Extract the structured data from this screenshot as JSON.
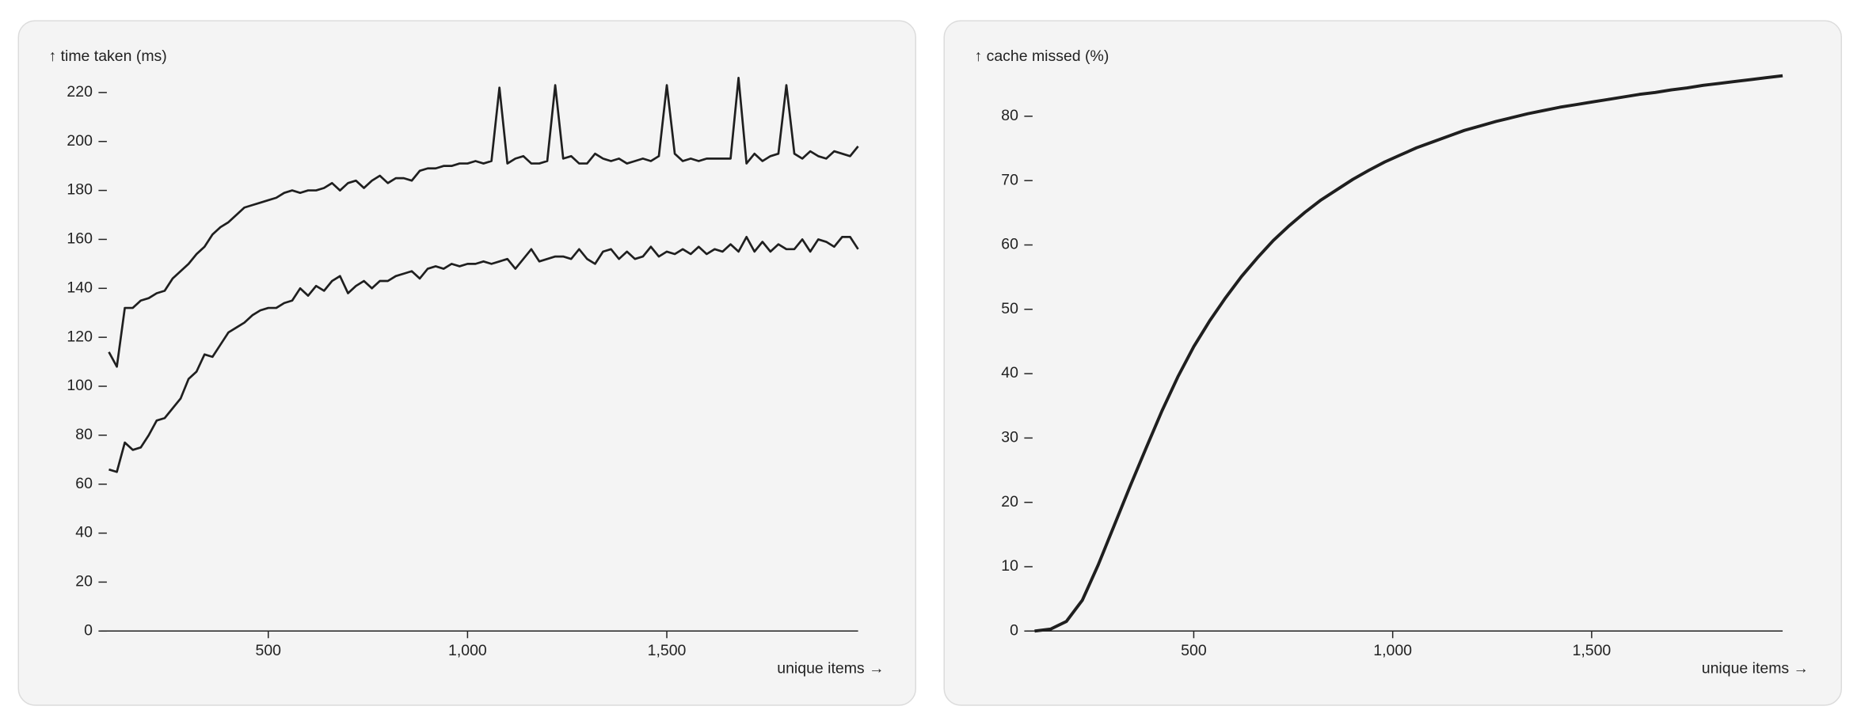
{
  "chart_data": [
    {
      "type": "line",
      "y_label": "↑ time taken (ms)",
      "x_label": "unique items →",
      "xlim": [
        80,
        1980
      ],
      "ylim": [
        0,
        226
      ],
      "xticks": [
        500,
        {
          "value": 1000,
          "label": "1,000"
        },
        {
          "value": 1500,
          "label": "1,500"
        }
      ],
      "yticks": [
        0,
        20,
        40,
        60,
        80,
        100,
        120,
        140,
        160,
        180,
        200,
        220
      ],
      "x": [
        100,
        120,
        140,
        160,
        180,
        200,
        220,
        240,
        260,
        280,
        300,
        320,
        340,
        360,
        380,
        400,
        420,
        440,
        460,
        480,
        500,
        520,
        540,
        560,
        580,
        600,
        620,
        640,
        660,
        680,
        700,
        720,
        740,
        760,
        780,
        800,
        820,
        840,
        860,
        880,
        900,
        920,
        940,
        960,
        980,
        1000,
        1020,
        1040,
        1060,
        1080,
        1100,
        1120,
        1140,
        1160,
        1180,
        1200,
        1220,
        1240,
        1260,
        1280,
        1300,
        1320,
        1340,
        1360,
        1380,
        1400,
        1420,
        1440,
        1460,
        1480,
        1500,
        1520,
        1540,
        1560,
        1580,
        1600,
        1620,
        1640,
        1660,
        1680,
        1700,
        1720,
        1740,
        1760,
        1780,
        1800,
        1820,
        1840,
        1860,
        1880,
        1900,
        1920,
        1940,
        1960,
        1980
      ],
      "series": [
        {
          "color": "#1f1f1f",
          "values": [
            114,
            108,
            132,
            132,
            135,
            136,
            138,
            139,
            144,
            147,
            150,
            154,
            157,
            162,
            165,
            167,
            170,
            173,
            174,
            175,
            176,
            177,
            179,
            180,
            179,
            180,
            180,
            181,
            183,
            180,
            183,
            184,
            181,
            184,
            186,
            183,
            185,
            185,
            184,
            188,
            189,
            189,
            190,
            190,
            191,
            191,
            192,
            191,
            192,
            222,
            191,
            193,
            194,
            191,
            191,
            192,
            223,
            193,
            194,
            191,
            191,
            195,
            193,
            192,
            193,
            191,
            192,
            193,
            192,
            194,
            223,
            195,
            192,
            193,
            192,
            193,
            193,
            193,
            193,
            226,
            191,
            195,
            192,
            194,
            195,
            223,
            195,
            193,
            196,
            194,
            193,
            196,
            195,
            194,
            198
          ]
        },
        {
          "color": "#1f1f1f",
          "values": [
            66,
            65,
            77,
            74,
            75,
            80,
            86,
            87,
            91,
            95,
            103,
            106,
            113,
            112,
            117,
            122,
            124,
            126,
            129,
            131,
            132,
            132,
            134,
            135,
            140,
            137,
            141,
            139,
            143,
            145,
            138,
            141,
            143,
            140,
            143,
            143,
            145,
            146,
            147,
            144,
            148,
            149,
            148,
            150,
            149,
            150,
            150,
            151,
            150,
            151,
            152,
            148,
            152,
            156,
            151,
            152,
            153,
            153,
            152,
            156,
            152,
            150,
            155,
            156,
            152,
            155,
            152,
            153,
            157,
            153,
            155,
            154,
            156,
            154,
            157,
            154,
            156,
            155,
            158,
            155,
            161,
            155,
            159,
            155,
            158,
            156,
            156,
            160,
            155,
            160,
            159,
            157,
            161,
            161,
            156
          ]
        }
      ]
    },
    {
      "type": "line",
      "y_label": "↑ cache missed (%)",
      "x_label": "unique items →",
      "xlim": [
        80,
        1980
      ],
      "ylim": [
        0,
        88
      ],
      "xticks": [
        500,
        {
          "value": 1000,
          "label": "1,000"
        },
        {
          "value": 1500,
          "label": "1,500"
        }
      ],
      "yticks": [
        0,
        10,
        20,
        30,
        40,
        50,
        60,
        70,
        80
      ],
      "x": [
        100,
        140,
        180,
        220,
        260,
        300,
        340,
        380,
        420,
        460,
        500,
        540,
        580,
        620,
        660,
        700,
        740,
        780,
        820,
        860,
        900,
        940,
        980,
        1020,
        1060,
        1100,
        1140,
        1180,
        1220,
        1260,
        1300,
        1340,
        1380,
        1420,
        1460,
        1500,
        1540,
        1580,
        1620,
        1660,
        1700,
        1740,
        1780,
        1820,
        1860,
        1900,
        1940,
        1980
      ],
      "series": [
        {
          "color": "#1f1f1f",
          "values": [
            0,
            0.3,
            1.5,
            4.8,
            10.3,
            16.4,
            22.5,
            28.4,
            34.2,
            39.5,
            44.2,
            48.2,
            51.8,
            55.1,
            58.0,
            60.7,
            63.0,
            65.1,
            67.0,
            68.6,
            70.2,
            71.6,
            72.9,
            74.0,
            75.1,
            76.0,
            76.9,
            77.8,
            78.5,
            79.2,
            79.8,
            80.4,
            80.9,
            81.4,
            81.8,
            82.2,
            82.6,
            83.0,
            83.4,
            83.7,
            84.1,
            84.4,
            84.8,
            85.1,
            85.4,
            85.7,
            86.0,
            86.3
          ]
        }
      ]
    }
  ]
}
